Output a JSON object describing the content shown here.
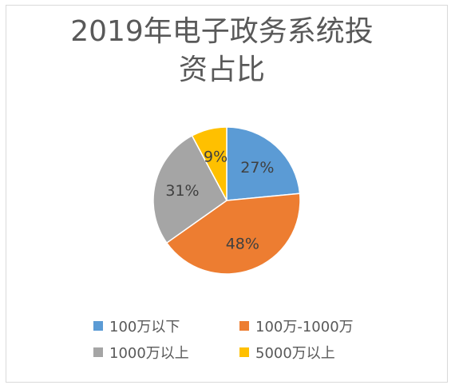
{
  "chart_data": {
    "type": "pie",
    "title": "2019年电子政务系统投资占比",
    "title_lines": [
      "2019年电子政务系统投",
      "资占比"
    ],
    "categories": [
      "100万以下",
      "100万-1000万",
      "1000万以上",
      "5000万以上"
    ],
    "values": [
      27,
      48,
      31,
      9
    ],
    "data_labels": [
      "27%",
      "48%",
      "31%",
      "9%"
    ],
    "colors": [
      "#5b9bd5",
      "#ed7d31",
      "#a5a5a5",
      "#ffc000"
    ],
    "legend_position": "bottom"
  }
}
